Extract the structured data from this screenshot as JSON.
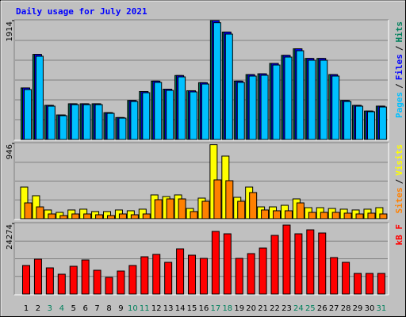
{
  "chart_data": [
    {
      "type": "bar",
      "title": "Daily usage for July 2021",
      "title_color": "#0000ff",
      "ylim": [
        0,
        1914
      ],
      "yticks": [
        1914
      ],
      "legend_separator": "/",
      "series": [
        {
          "name": "Hits",
          "color": "#00805c",
          "values": [
            830,
            1370,
            550,
            395,
            575,
            575,
            575,
            432,
            353,
            628,
            772,
            940,
            810,
            1030,
            785,
            915,
            1914,
            1730,
            940,
            1045,
            1058,
            1225,
            1355,
            1460,
            1305,
            1305,
            1045,
            628,
            550,
            458,
            537
          ]
        },
        {
          "name": "Files",
          "color": "#0000ff",
          "values": [
            830,
            1370,
            550,
            395,
            575,
            575,
            575,
            432,
            353,
            628,
            772,
            940,
            810,
            1030,
            785,
            915,
            1914,
            1730,
            940,
            1045,
            1058,
            1225,
            1355,
            1460,
            1305,
            1305,
            1045,
            628,
            550,
            458,
            537
          ]
        },
        {
          "name": "Pages",
          "color": "#00c0ff",
          "values": [
            804,
            1340,
            536,
            383,
            561,
            561,
            561,
            421,
            344,
            612,
            753,
            919,
            791,
            1008,
            766,
            893,
            1880,
            1697,
            919,
            1021,
            1034,
            1199,
            1327,
            1429,
            1276,
            1276,
            1021,
            612,
            536,
            447,
            523
          ]
        }
      ]
    },
    {
      "type": "bar",
      "ylim": [
        0,
        946
      ],
      "yticks": [
        946
      ],
      "legend_separator": "/",
      "series": [
        {
          "name": "Visits",
          "color": "#ffff00",
          "values": [
            398,
            289,
            110,
            80,
            110,
            120,
            90,
            90,
            110,
            100,
            120,
            299,
            279,
            299,
            129,
            259,
            930,
            787,
            269,
            398,
            149,
            149,
            169,
            249,
            139,
            139,
            129,
            120,
            110,
            120,
            139
          ]
        },
        {
          "name": "Sites",
          "color": "#ff8000",
          "values": [
            199,
            149,
            60,
            40,
            60,
            60,
            50,
            40,
            60,
            50,
            60,
            239,
            249,
            249,
            90,
            219,
            488,
            478,
            219,
            329,
            110,
            100,
            100,
            199,
            80,
            80,
            80,
            70,
            60,
            70,
            60
          ]
        }
      ]
    },
    {
      "type": "bar",
      "ylim": [
        0,
        24274
      ],
      "yticks": [
        24274
      ],
      "legend_separator": "/",
      "categories": [
        "1",
        "2",
        "3",
        "4",
        "5",
        "6",
        "7",
        "8",
        "9",
        "10",
        "11",
        "12",
        "13",
        "14",
        "15",
        "16",
        "17",
        "18",
        "19",
        "20",
        "21",
        "22",
        "23",
        "24",
        "25",
        "26",
        "27",
        "28",
        "29",
        "30",
        "31"
      ],
      "category_colors": [
        "#000000",
        "#000000",
        "#00805c",
        "#00805c",
        "#000000",
        "#000000",
        "#000000",
        "#000000",
        "#000000",
        "#00805c",
        "#00805c",
        "#000000",
        "#000000",
        "#000000",
        "#000000",
        "#000000",
        "#00805c",
        "#00805c",
        "#000000",
        "#000000",
        "#000000",
        "#000000",
        "#000000",
        "#00805c",
        "#00805c",
        "#000000",
        "#000000",
        "#000000",
        "#000000",
        "#000000",
        "#00805c"
      ],
      "series": [
        {
          "name": "kB F",
          "color": "#ff0000",
          "values": [
            9818,
            12000,
            9000,
            6818,
            9545,
            11727,
            8181,
            5727,
            7909,
            9818,
            12818,
            13636,
            10909,
            15545,
            13363,
            12272,
            21545,
            20727,
            12272,
            13909,
            15818,
            20181,
            23727,
            20727,
            22090,
            21000,
            12545,
            10909,
            7090,
            7090,
            7090
          ]
        }
      ]
    }
  ]
}
